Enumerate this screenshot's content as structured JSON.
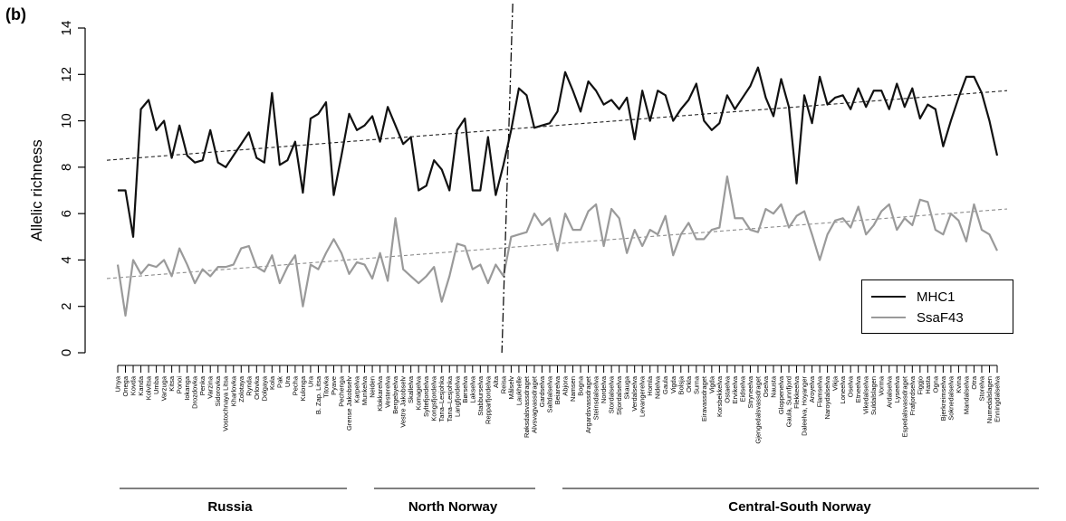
{
  "figure": {
    "panel_label": "(b)"
  },
  "regions": [
    "Russia",
    "North Norway",
    "Central-South Norway"
  ],
  "colors": {
    "mhc1": "#111111",
    "ssaf43": "#9a9a9a",
    "axis": "#000000"
  },
  "chart_data": {
    "type": "line",
    "ylabel": "Allelic richness",
    "ylim": [
      0,
      14
    ],
    "yticks": [
      0,
      2,
      4,
      6,
      8,
      10,
      12,
      14
    ],
    "divider_after_category": "Reisa",
    "x": [
      "Unya",
      "Onega",
      "Kovda",
      "Kanda",
      "Kolvitsa",
      "Umba",
      "Varzuga",
      "Kitsa",
      "Ponoi",
      "Iokanga",
      "Drozdovka",
      "Penka",
      "Varzina",
      "Sidorovka",
      "Vostochnaya Litsa",
      "Kharlovka",
      "Zolotaya",
      "Rynda",
      "Orlovka",
      "Dolgaya",
      "Kola",
      "Pak",
      "Ura",
      "Pecha",
      "Kulonga",
      "Ura",
      "B. Zap. Litsa",
      "Titovka",
      "Pyave",
      "Pechenga",
      "Grense Jakobselv",
      "Karpelva",
      "Munkelva",
      "Neiden",
      "Klokkarelva",
      "Vesterelva",
      "Bergebyelva",
      "Vestre Jakobselv",
      "Skallelva",
      "Komagelva",
      "Syltefjordelva",
      "Kongsfjordelva",
      "Tana–Lesjohka",
      "Tana–Lesjohka",
      "Langfjordelva",
      "Børselva",
      "Lakselva",
      "Stabburselva",
      "Repparfjordelva",
      "Alta",
      "Reisa",
      "Målselv",
      "Laukhelle",
      "Røksdalsvassdraget",
      "Alvsvagvassdraget",
      "Gardselva",
      "Saltdalselva",
      "Beiarelva",
      "Abjora",
      "Namsen",
      "Bogna",
      "Argardsvassdraget",
      "Steinsdalselva",
      "Nordelva",
      "Stordalselva",
      "Stjordalselva",
      "Skauga",
      "Verdalselva",
      "Levangerelva",
      "Homla",
      "Nidelva",
      "Gaula",
      "Vigda",
      "Bolsja",
      "Orkla",
      "Surna",
      "Eiravassdraget",
      "Vigda",
      "Korsbekkelva",
      "Ostaelva",
      "Ervikelva",
      "Eidselva",
      "Stryneelva",
      "Gjengedalsvassdraget",
      "Oselva",
      "Nausta",
      "Gloppenelva",
      "Gaula, Sunnfjord",
      "Flekkeelva",
      "Daleelva, Hoyanger",
      "Aroyelva",
      "Flamselva",
      "Naroydalselva",
      "Vikja",
      "Loneelva",
      "Oselva",
      "Etneelva",
      "Vikedalselva",
      "Suldalslagen",
      "Vorma",
      "Ardalselva",
      "Lyseelva",
      "Espedalsvassdraget",
      "Frafjordselva",
      "Figgjo",
      "Hasta",
      "Ogna",
      "Bjerkreimselva",
      "Soknedalselva",
      "Kvina",
      "Mandalselva",
      "Otra",
      "Storelva",
      "Numedalslagen",
      "Enningdalselva"
    ],
    "series": [
      {
        "name": "MHC1",
        "values": [
          7.0,
          7.0,
          5.0,
          10.5,
          10.9,
          9.6,
          10.0,
          8.4,
          9.8,
          8.5,
          8.2,
          8.3,
          9.6,
          8.2,
          8.0,
          8.5,
          9.0,
          9.5,
          8.4,
          8.2,
          11.2,
          8.1,
          8.3,
          9.1,
          6.9,
          10.1,
          10.3,
          10.8,
          6.8,
          8.5,
          10.3,
          9.6,
          9.8,
          10.2,
          9.1,
          10.6,
          9.8,
          9.0,
          9.3,
          7.0,
          7.2,
          8.3,
          7.9,
          7.0,
          9.6,
          10.1,
          7.0,
          7.0,
          9.3,
          6.8,
          8.1,
          9.6,
          11.4,
          11.1,
          9.7,
          9.8,
          9.9,
          10.4,
          12.1,
          11.3,
          10.4,
          11.7,
          11.3,
          10.7,
          10.9,
          10.5,
          11.0,
          9.2,
          11.3,
          10.0,
          11.3,
          11.1,
          10.0,
          10.5,
          10.9,
          11.6,
          10.0,
          9.6,
          9.9,
          11.1,
          10.5,
          11.0,
          11.5,
          12.3,
          11.0,
          10.2,
          11.8,
          10.6,
          7.3,
          11.1,
          9.9,
          11.9,
          10.7,
          11.0,
          11.1,
          10.5,
          11.4,
          10.6,
          11.3,
          11.3,
          10.5,
          11.6,
          10.6,
          11.4,
          10.1,
          10.7,
          10.5,
          8.9,
          10.0,
          11.0,
          11.9,
          11.9,
          11.2,
          10.0,
          8.5
        ]
      },
      {
        "name": "SsaF43",
        "values": [
          3.8,
          1.6,
          4.0,
          3.4,
          3.8,
          3.7,
          4.0,
          3.3,
          4.5,
          3.8,
          3.0,
          3.6,
          3.3,
          3.7,
          3.7,
          3.8,
          4.5,
          4.6,
          3.7,
          3.5,
          4.2,
          3.0,
          3.7,
          4.2,
          2.0,
          3.8,
          3.6,
          4.3,
          4.9,
          4.3,
          3.4,
          3.9,
          3.8,
          3.2,
          4.3,
          3.1,
          5.8,
          3.6,
          3.3,
          3.0,
          3.3,
          3.7,
          2.2,
          3.3,
          4.7,
          4.6,
          3.6,
          3.8,
          3.0,
          3.8,
          3.3,
          5.0,
          5.1,
          5.2,
          6.0,
          5.5,
          5.8,
          4.4,
          6.0,
          5.3,
          5.3,
          6.1,
          6.4,
          4.6,
          6.2,
          5.8,
          4.3,
          5.3,
          4.6,
          5.3,
          5.1,
          5.9,
          4.2,
          5.1,
          5.6,
          4.9,
          4.9,
          5.3,
          5.4,
          7.6,
          5.8,
          5.8,
          5.3,
          5.2,
          6.2,
          6.0,
          6.4,
          5.4,
          5.9,
          6.1,
          5.1,
          4.0,
          5.1,
          5.7,
          5.8,
          5.4,
          6.3,
          5.1,
          5.5,
          6.1,
          6.4,
          5.3,
          5.8,
          5.5,
          6.6,
          6.5,
          5.3,
          5.1,
          6.0,
          5.7,
          4.8,
          6.4,
          5.3,
          5.1,
          4.4
        ]
      }
    ],
    "trendlines": [
      {
        "series": "MHC1",
        "from": 8.3,
        "to": 11.3
      },
      {
        "series": "SsaF43",
        "from": 3.2,
        "to": 6.2
      }
    ]
  }
}
